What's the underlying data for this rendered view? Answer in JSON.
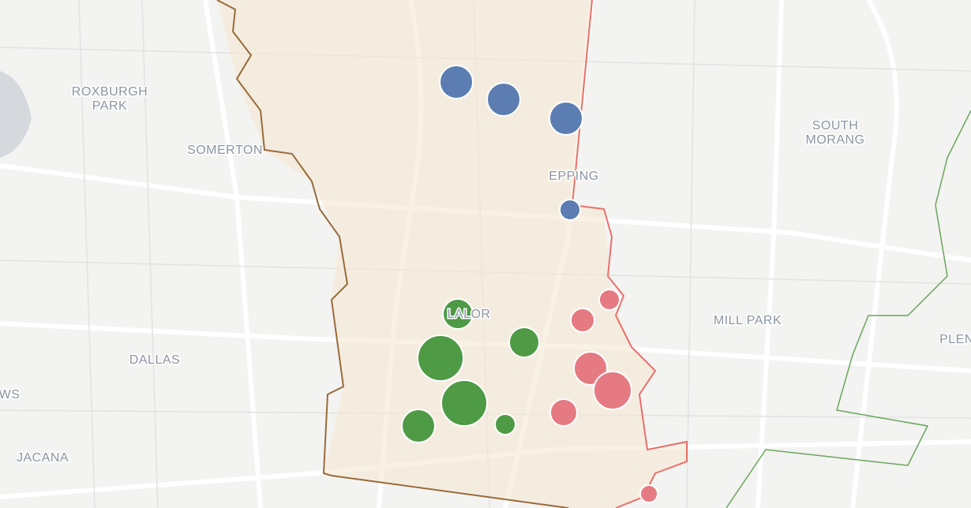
{
  "places": [
    {
      "lines": [
        "ROXBURGH",
        "PARK"
      ]
    },
    {
      "lines": [
        "SOMERTON"
      ]
    },
    {
      "lines": [
        "DALLAS"
      ]
    },
    {
      "lines": [
        "WS"
      ]
    },
    {
      "lines": [
        "JACANA"
      ]
    },
    {
      "lines": [
        "EPPING"
      ]
    },
    {
      "lines": [
        "LALOR"
      ]
    },
    {
      "lines": [
        "SOUTH",
        "MORANG"
      ]
    },
    {
      "lines": [
        "MILL PARK"
      ]
    },
    {
      "lines": [
        "PLEN"
      ]
    }
  ]
}
